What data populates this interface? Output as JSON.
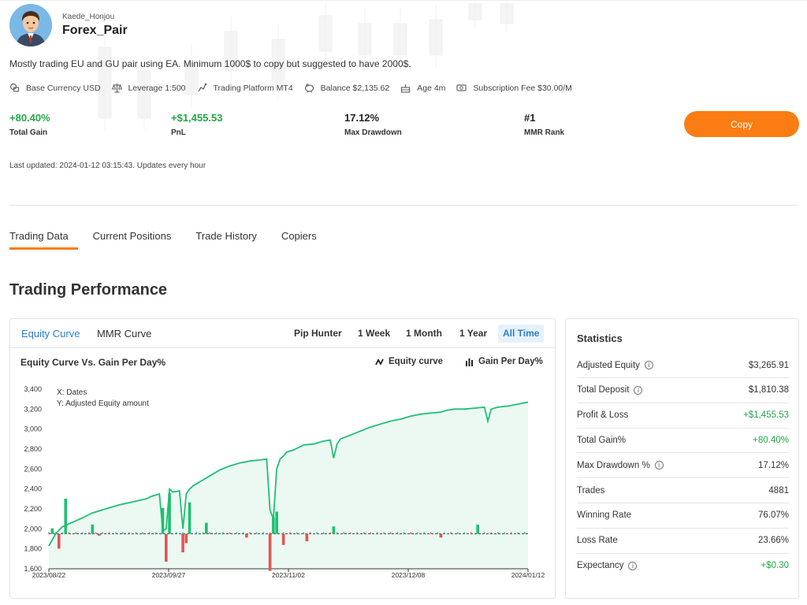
{
  "profile": {
    "username": "Kaede_Honjou",
    "pair_name": "Forex_Pair",
    "description": "Mostly trading EU and GU pair using EA. Minimum 1000$ to copy but suggested to have 2000$."
  },
  "meta": [
    {
      "icon": "currency-icon",
      "text": "Base Currency USD"
    },
    {
      "icon": "scale-icon",
      "text": "Leverage 1:500"
    },
    {
      "icon": "platform-icon",
      "text": "Trading Platform MT4"
    },
    {
      "icon": "piggy-bank-icon",
      "text": "Balance $2,135.62"
    },
    {
      "icon": "cake-icon",
      "text": "Age 4m"
    },
    {
      "icon": "cash-icon",
      "text": "Subscription Fee $30.00/M"
    }
  ],
  "summary": {
    "total_gain": {
      "value": "+80.40%",
      "label": "Total Gain"
    },
    "pnl": {
      "value": "+$1,455.53",
      "label": "PnL"
    },
    "max_drawdown": {
      "value": "17.12%",
      "label": "Max Drawdown"
    },
    "mmr_rank": {
      "value": "#1",
      "label": "MMR Rank"
    }
  },
  "copy_label": "Copy",
  "last_updated": "Last updated: 2024-01-12 03:15:43. Updates every hour",
  "tabs": [
    "Trading Data",
    "Current Positions",
    "Trade History",
    "Copiers"
  ],
  "section_title": "Trading Performance",
  "chart_panel": {
    "tabs": [
      "Equity Curve",
      "MMR Curve"
    ],
    "ranges": [
      "Pip Hunter",
      "1 Week",
      "1 Month",
      "1 Year",
      "All Time"
    ],
    "title": "Equity Curve Vs. Gain Per Day%",
    "legend_equity": "Equity curve",
    "legend_gain": "Gain Per Day%",
    "note_x": "X: Dates",
    "note_y": "Y: Adjusted Equity amount"
  },
  "colors": {
    "accent": "#fb7c12",
    "positive": "#22a745",
    "negative": "#e05555",
    "link": "#2a7fc9",
    "equity_line": "#1fbf73"
  },
  "chart_data": {
    "type": "line",
    "title": "Equity Curve Vs. Gain Per Day%",
    "xlabel": "Dates",
    "ylabel": "Adjusted Equity amount",
    "ylim": [
      1600,
      3400
    ],
    "yticks": [
      1600,
      1800,
      2000,
      2200,
      2400,
      2600,
      2800,
      3000,
      3200,
      3400
    ],
    "xticks": [
      "2023/08/22",
      "2023/09/27",
      "2023/11/02",
      "2023/12/08",
      "2024/01/12"
    ],
    "legend": "top-right",
    "series": [
      {
        "name": "Equity curve",
        "type": "line",
        "x_days": [
          0,
          2,
          4,
          6,
          8,
          10,
          13,
          17,
          21,
          25,
          29,
          31,
          33,
          34,
          35,
          36,
          37,
          39,
          40,
          41,
          42,
          43,
          45,
          48,
          51,
          54,
          57,
          60,
          63,
          65,
          66,
          67,
          68,
          69,
          70,
          71,
          73,
          76,
          79,
          82,
          84,
          85,
          86,
          87,
          90,
          93,
          96,
          99,
          102,
          105,
          108,
          111,
          114,
          117,
          119,
          121,
          124,
          127,
          130,
          131,
          132,
          134,
          137,
          140,
          143
        ],
        "values": [
          1830,
          1950,
          2020,
          2050,
          2080,
          2110,
          2160,
          2200,
          2240,
          2270,
          2300,
          2330,
          2350,
          1980,
          2000,
          2400,
          2370,
          2380,
          2000,
          2350,
          2400,
          2430,
          2470,
          2530,
          2590,
          2630,
          2660,
          2680,
          2690,
          2700,
          2190,
          2100,
          2600,
          2700,
          2730,
          2770,
          2790,
          2840,
          2850,
          2880,
          2890,
          2710,
          2850,
          2900,
          2940,
          2980,
          3020,
          3050,
          3080,
          3100,
          3130,
          3150,
          3160,
          3170,
          3190,
          3200,
          3200,
          3210,
          3220,
          3080,
          3200,
          3220,
          3230,
          3250,
          3270
        ]
      },
      {
        "name": "Gain Per Day%",
        "type": "bar",
        "x_days": [
          1,
          3,
          5,
          13,
          15,
          34,
          35,
          36,
          40,
          41,
          42,
          47,
          59,
          66,
          67,
          68,
          70,
          77,
          85,
          117,
          128
        ],
        "values": [
          3.0,
          -8.0,
          19.0,
          5.0,
          -1.0,
          14.0,
          -15.0,
          22.0,
          -10.0,
          -5.0,
          17.0,
          6.0,
          -2.0,
          -20.0,
          9.0,
          12.0,
          -6.0,
          -4.0,
          4.0,
          -2.0,
          5.0
        ]
      }
    ]
  },
  "statistics": {
    "title": "Statistics",
    "rows": [
      {
        "label": "Adjusted Equity",
        "value": "$3,265.91",
        "info": true,
        "positive": false
      },
      {
        "label": "Total Deposit",
        "value": "$1,810.38",
        "info": true,
        "positive": false
      },
      {
        "label": "Profit & Loss",
        "value": "+$1,455.53",
        "info": false,
        "positive": true
      },
      {
        "label": "Total Gain%",
        "value": "+80.40%",
        "info": false,
        "positive": true
      },
      {
        "label": "Max Drawdown %",
        "value": "17.12%",
        "info": true,
        "positive": false
      },
      {
        "label": "Trades",
        "value": "4881",
        "info": false,
        "positive": false
      },
      {
        "label": "Winning Rate",
        "value": "76.07%",
        "info": false,
        "positive": false
      },
      {
        "label": "Loss Rate",
        "value": "23.66%",
        "info": false,
        "positive": false
      },
      {
        "label": "Expectancy",
        "value": "+$0.30",
        "info": true,
        "positive": true
      }
    ]
  }
}
